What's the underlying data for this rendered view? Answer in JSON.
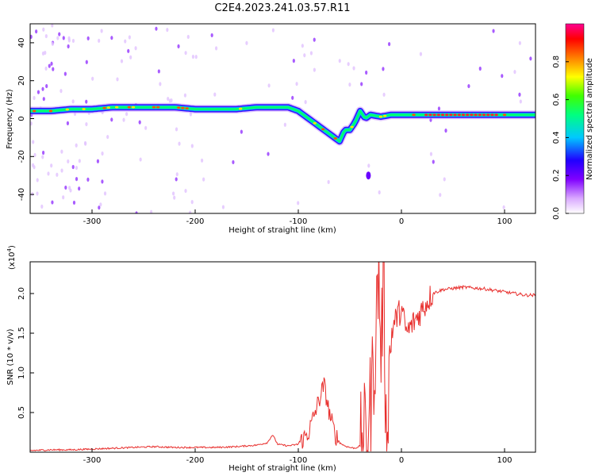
{
  "figure": {
    "title": "C2E4.2023.241.03.57.R11"
  },
  "chart_data": [
    {
      "type": "heatmap",
      "xlabel": "Height of straight line (km)",
      "ylabel": "Frequency (Hz)",
      "xlim": [
        -360,
        130
      ],
      "ylim": [
        -50,
        50
      ],
      "x_ticks": [
        -300,
        -200,
        -100,
        0,
        100
      ],
      "y_ticks": [
        -40,
        -20,
        0,
        20,
        40
      ],
      "colorbar": {
        "label": "Normalized spectral amplitude",
        "range": [
          0.0,
          1.0
        ],
        "ticks": [
          0.0,
          0.2,
          0.4,
          0.6,
          0.8
        ],
        "tick_labels": [
          "0.0",
          "0.2",
          "0.4",
          "0.6",
          "0.8"
        ]
      },
      "ridge": {
        "x": [
          -360,
          -340,
          -320,
          -300,
          -280,
          -260,
          -240,
          -220,
          -200,
          -180,
          -160,
          -140,
          -120,
          -110,
          -100,
          -90,
          -80,
          -70,
          -60,
          -55,
          -50,
          -45,
          -40,
          -35,
          -30,
          -20,
          -10,
          0,
          20,
          40,
          60,
          80,
          100,
          130
        ],
        "freq": [
          4,
          4,
          5,
          5,
          6,
          6,
          6,
          6,
          5,
          5,
          5,
          6,
          6,
          6,
          4,
          0,
          -4,
          -8,
          -12,
          -6,
          -6,
          -2,
          4,
          0,
          2,
          1,
          2,
          2,
          2,
          2,
          2,
          2,
          2,
          2
        ]
      }
    },
    {
      "type": "line",
      "xlabel": "Height of straight line (km)",
      "ylabel": "SNR (10 * v/v)",
      "y_scale_label": "(x10",
      "y_scale_exp": "4",
      "y_scale_close": ")",
      "xlim": [
        -360,
        130
      ],
      "ylim": [
        0,
        2.4
      ],
      "x_ticks": [
        -300,
        -200,
        -100,
        0,
        100
      ],
      "y_ticks": [
        0.5,
        1.0,
        1.5,
        2.0
      ],
      "y_tick_labels": [
        "0.5",
        "1.0",
        "1.5",
        "2.0"
      ],
      "color": "#e8302e",
      "series": [
        {
          "x": [
            -360,
            -340,
            -320,
            -300,
            -280,
            -260,
            -240,
            -220,
            -200,
            -180,
            -160,
            -140,
            -130,
            -125,
            -120,
            -110,
            -100,
            -90,
            -85,
            -80,
            -75,
            -70,
            -65,
            -60,
            -55,
            -50,
            -45,
            -40,
            -35,
            -30,
            -25,
            -22,
            -20,
            -17,
            -15,
            -10,
            -5,
            0,
            5,
            10,
            20,
            30,
            40,
            60,
            80,
            100,
            120,
            130
          ],
          "y": [
            0.02,
            0.03,
            0.03,
            0.04,
            0.05,
            0.06,
            0.07,
            0.06,
            0.06,
            0.06,
            0.07,
            0.09,
            0.12,
            0.22,
            0.1,
            0.08,
            0.1,
            0.25,
            0.45,
            0.65,
            0.85,
            0.5,
            0.25,
            0.12,
            0.08,
            0.06,
            0.05,
            0.08,
            0.2,
            0.6,
            1.4,
            2.4,
            1.2,
            2.3,
            0.2,
            1.5,
            1.7,
            1.8,
            1.5,
            1.6,
            1.8,
            2.0,
            2.05,
            2.08,
            2.06,
            2.02,
            1.98,
            1.98
          ]
        }
      ]
    }
  ],
  "colors": {
    "line": "#e8302e",
    "colormap": [
      "#ffffff",
      "#a000ff",
      "#2000ff",
      "#00e0ff",
      "#00ff40",
      "#ffff00",
      "#ff8000",
      "#ff0000",
      "#ff0080"
    ]
  }
}
